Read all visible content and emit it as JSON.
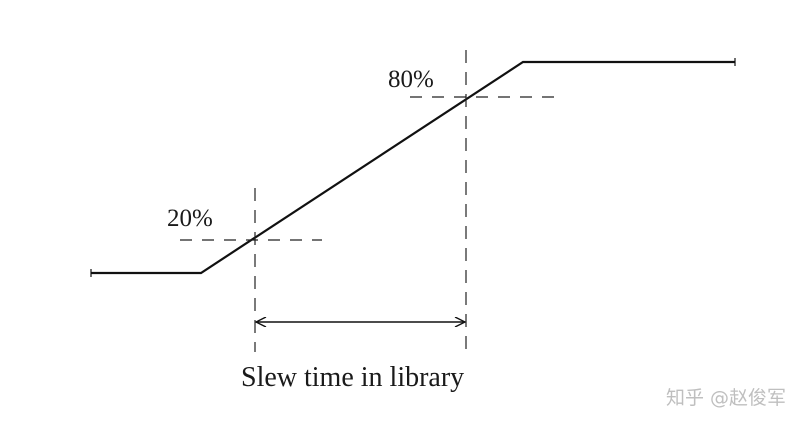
{
  "labels": {
    "high_threshold": "80%",
    "low_threshold": "20%",
    "caption": "Slew time in library"
  },
  "watermark": "知乎 @赵俊军",
  "colors": {
    "line": "#111111",
    "dash": "#222222",
    "text": "#1a1a1a",
    "watermark": "#bfbfbf"
  }
}
